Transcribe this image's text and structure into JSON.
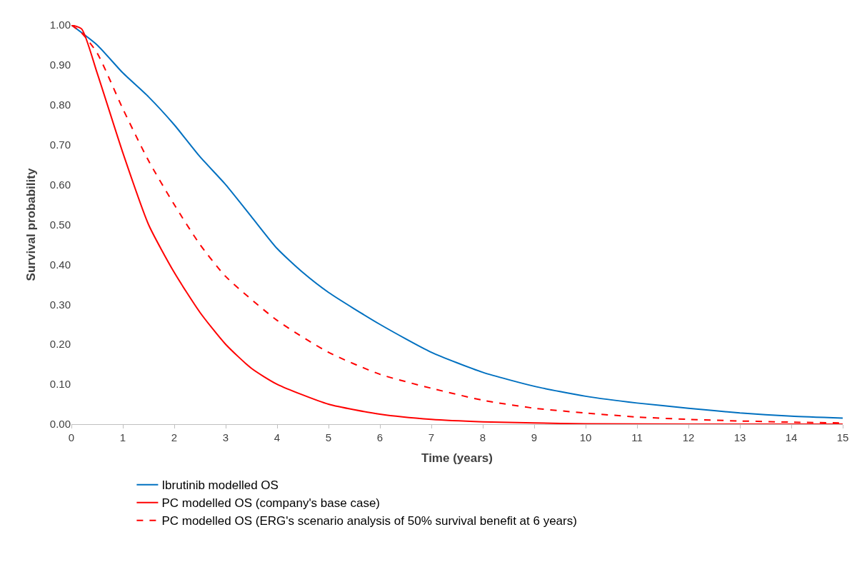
{
  "chart_data": {
    "type": "line",
    "xlabel": "Time (years)",
    "ylabel": "Survival probability",
    "xlim": [
      0,
      15
    ],
    "xticks": [
      0,
      1,
      2,
      3,
      4,
      5,
      6,
      7,
      8,
      9,
      10,
      11,
      12,
      13,
      14,
      15
    ],
    "ylim": [
      0,
      1
    ],
    "yticks": [
      {
        "value": 0,
        "label": "0.00"
      },
      {
        "value": 0.1,
        "label": "0.10"
      },
      {
        "value": 0.2,
        "label": "0.20"
      },
      {
        "value": 0.3,
        "label": "0.30"
      },
      {
        "value": 0.4,
        "label": "0.40"
      },
      {
        "value": 0.5,
        "label": "0.50"
      },
      {
        "value": 0.6,
        "label": "0.60"
      },
      {
        "value": 0.7,
        "label": "0.70"
      },
      {
        "value": 0.8,
        "label": "0.80"
      },
      {
        "value": 0.9,
        "label": "0.90"
      },
      {
        "value": 1,
        "label": "1.00"
      }
    ],
    "legend": "bottom",
    "series": [
      {
        "name": "Ibrutinib modelled OS",
        "color": "#0070c0",
        "line_style": "solid",
        "x": [
          0,
          0.5,
          1,
          1.5,
          2,
          2.5,
          3,
          3.5,
          4,
          4.5,
          5,
          6,
          7,
          8,
          9,
          10,
          11,
          12,
          13,
          14,
          15
        ],
        "values": [
          1.0,
          0.95,
          0.88,
          0.82,
          0.75,
          0.67,
          0.6,
          0.52,
          0.44,
          0.38,
          0.33,
          0.25,
          0.18,
          0.13,
          0.095,
          0.07,
          0.053,
          0.04,
          0.028,
          0.02,
          0.015
        ]
      },
      {
        "name": "PC modelled OS (company's base case)",
        "color": "#ff0000",
        "line_style": "solid",
        "x": [
          0,
          0.2,
          0.5,
          1,
          1.5,
          2,
          2.5,
          3,
          3.5,
          4,
          5,
          6,
          7,
          8,
          9,
          10,
          12,
          15
        ],
        "values": [
          1.0,
          0.99,
          0.88,
          0.68,
          0.5,
          0.38,
          0.28,
          0.2,
          0.14,
          0.1,
          0.05,
          0.025,
          0.012,
          0.006,
          0.003,
          0.001,
          0.0,
          0.0
        ]
      },
      {
        "name": "PC modelled OS (ERG's scenario analysis of 50% survival benefit at 6 years)",
        "color": "#ff0000",
        "line_style": "dashed",
        "x": [
          0,
          0.2,
          0.5,
          1,
          1.5,
          2,
          2.5,
          3,
          4,
          5,
          6,
          7,
          8,
          9,
          10,
          11,
          12,
          13,
          14,
          15
        ],
        "values": [
          1.0,
          0.98,
          0.93,
          0.79,
          0.66,
          0.55,
          0.45,
          0.37,
          0.26,
          0.18,
          0.125,
          0.09,
          0.06,
          0.04,
          0.028,
          0.018,
          0.012,
          0.008,
          0.005,
          0.003
        ]
      }
    ]
  }
}
